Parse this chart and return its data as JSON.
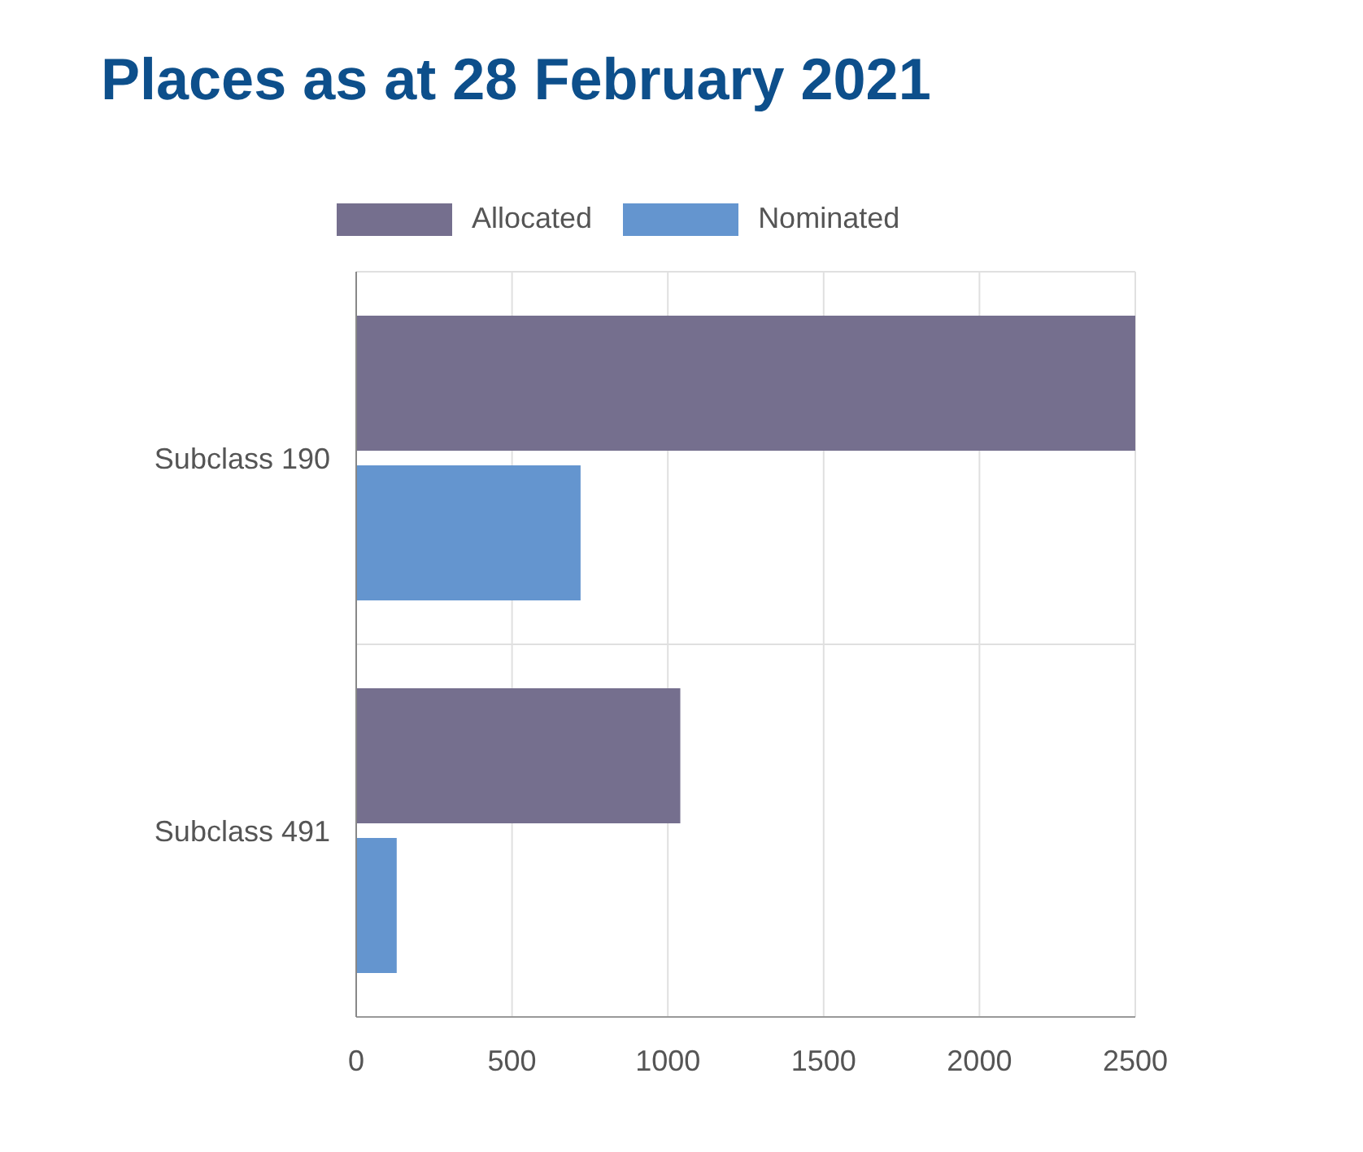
{
  "chart_data": {
    "type": "bar",
    "orientation": "horizontal",
    "title": "Places as at 28 February 2021",
    "categories": [
      "Subclass 190",
      "Subclass 491"
    ],
    "series": [
      {
        "name": "Allocated",
        "color": "#756f8e",
        "values": [
          2500,
          1040
        ]
      },
      {
        "name": "Nominated",
        "color": "#6495cf",
        "values": [
          720,
          130
        ]
      }
    ],
    "xlim": [
      0,
      2500
    ],
    "xticks": [
      0,
      500,
      1000,
      1500,
      2000,
      2500
    ],
    "grid": true,
    "legend": "top"
  }
}
